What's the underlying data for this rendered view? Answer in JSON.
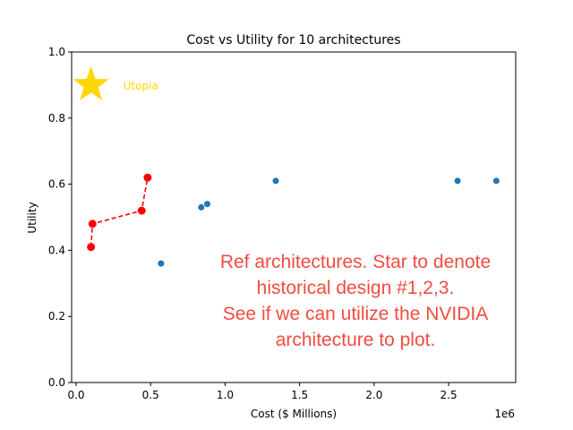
{
  "chart_data": {
    "type": "scatter",
    "title": "Cost vs Utility for 10 architectures",
    "xlabel": "Cost ($ Millions)",
    "ylabel": "Utility",
    "x_offset_label": "1e6",
    "xlim": [
      -30000,
      2950000
    ],
    "ylim": [
      0.0,
      1.0
    ],
    "xticks": [
      {
        "value": 0,
        "label": "0.0"
      },
      {
        "value": 500000,
        "label": "0.5"
      },
      {
        "value": 1000000,
        "label": "1.0"
      },
      {
        "value": 1500000,
        "label": "1.5"
      },
      {
        "value": 2000000,
        "label": "2.0"
      },
      {
        "value": 2500000,
        "label": "2.5"
      }
    ],
    "yticks": [
      {
        "value": 0.0,
        "label": "0.0"
      },
      {
        "value": 0.2,
        "label": "0.2"
      },
      {
        "value": 0.4,
        "label": "0.4"
      },
      {
        "value": 0.6,
        "label": "0.6"
      },
      {
        "value": 0.8,
        "label": "0.8"
      },
      {
        "value": 1.0,
        "label": "1.0"
      }
    ],
    "grid": false,
    "series": [
      {
        "style": "scatter",
        "color": "#1f77b4",
        "points": [
          {
            "x": 570000,
            "y": 0.36
          },
          {
            "x": 840000,
            "y": 0.53
          },
          {
            "x": 880000,
            "y": 0.54
          },
          {
            "x": 1340000,
            "y": 0.61
          },
          {
            "x": 2560000,
            "y": 0.61
          },
          {
            "x": 2820000,
            "y": 0.61
          }
        ]
      },
      {
        "style": "dashed-line-markers",
        "color": "#ff0000",
        "points": [
          {
            "x": 100000,
            "y": 0.41
          },
          {
            "x": 110000,
            "y": 0.48
          },
          {
            "x": 440000,
            "y": 0.52
          },
          {
            "x": 480000,
            "y": 0.62
          }
        ]
      }
    ],
    "utopia": {
      "x": 100000,
      "y": 0.9,
      "label": "Utopia",
      "color": "#ffd700"
    },
    "annotation": {
      "lines": [
        "Ref architectures. Star to denote",
        "historical design #1,2,3.",
        "See if we can utilize the NVIDIA",
        "architecture to plot."
      ],
      "color": "#f44b3f"
    }
  }
}
